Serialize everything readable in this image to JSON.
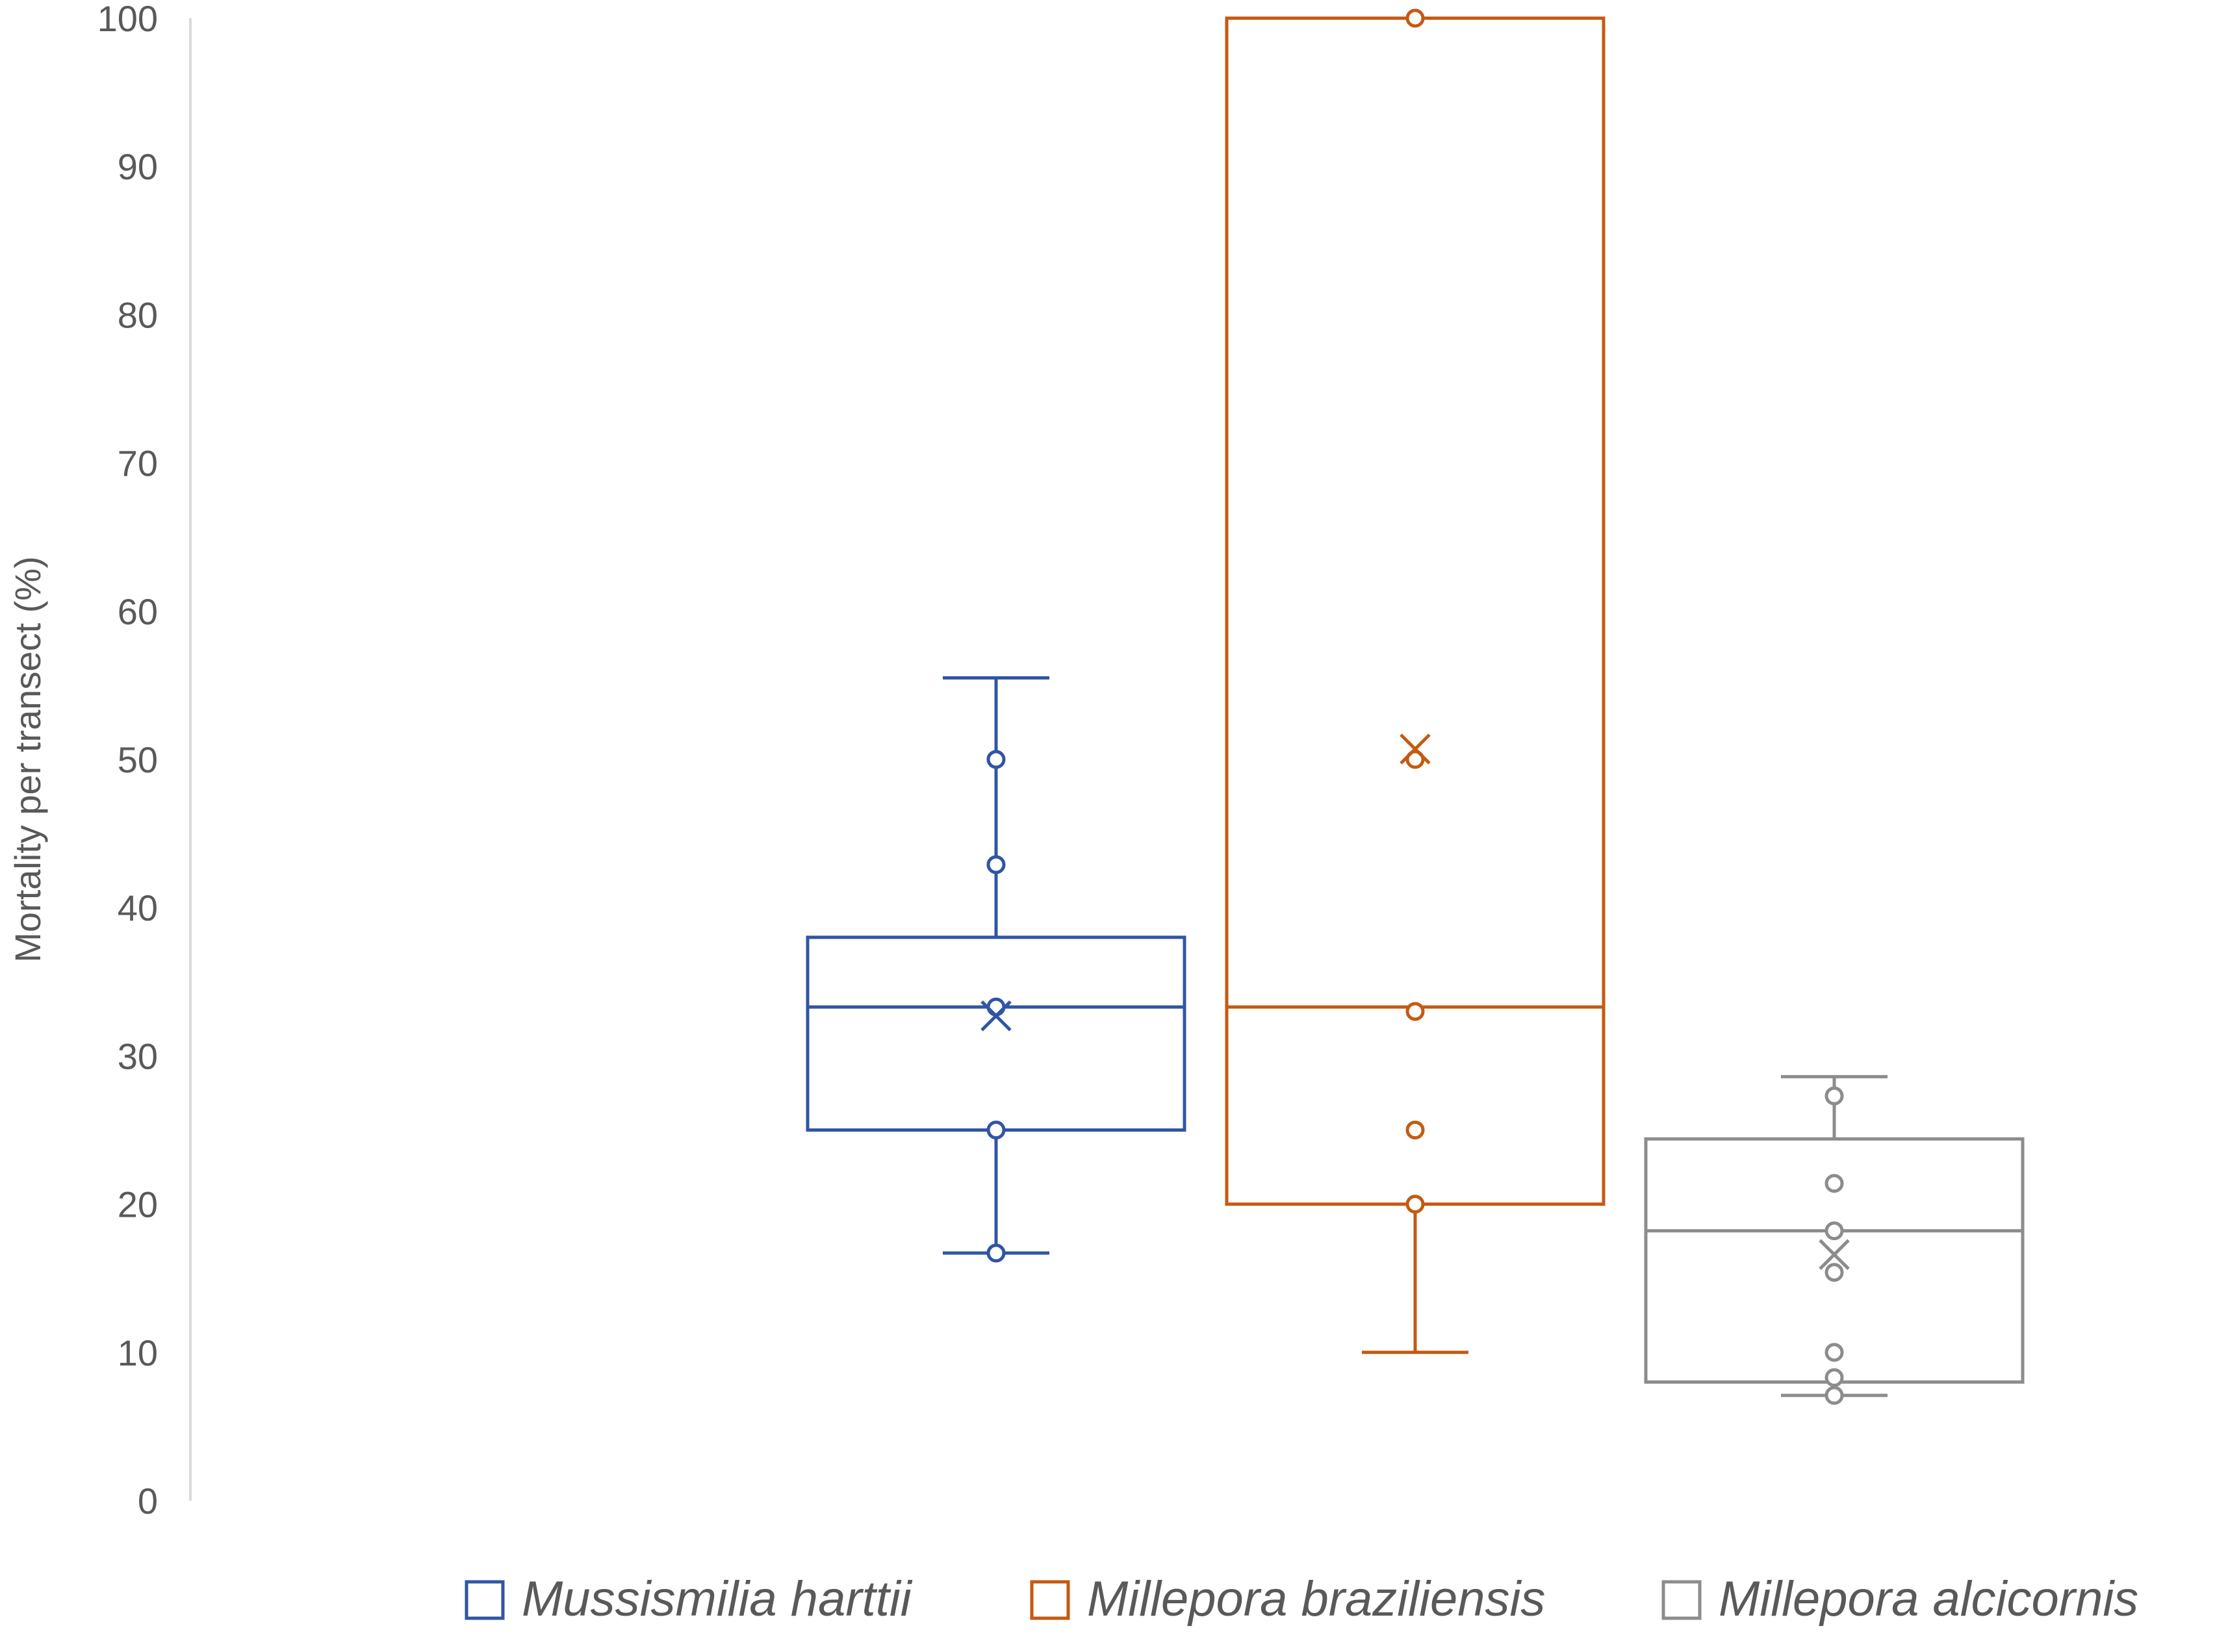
{
  "chart_data": {
    "type": "box",
    "title": "",
    "xlabel": "",
    "ylabel": "Mortality per transect (%)",
    "ylim": [
      0,
      100
    ],
    "yticks": [
      0,
      10,
      20,
      30,
      40,
      50,
      60,
      70,
      80,
      90,
      100
    ],
    "grid": false,
    "legend_position": "bottom",
    "series": [
      {
        "name": "Mussismilia harttii",
        "color": "#2F55A4",
        "whisker_low": 16.7,
        "q1": 25,
        "median": 33.3,
        "q3": 38,
        "whisker_high": 55.5,
        "mean": 32.7,
        "points": [
          16.7,
          25,
          33.3,
          42.9,
          50
        ]
      },
      {
        "name": "Millepora braziliensis",
        "color": "#C55A11",
        "whisker_low": 10,
        "q1": 20,
        "median": 33.3,
        "q3": 100,
        "whisker_high": 100,
        "mean": 50.7,
        "points": [
          20,
          25,
          33,
          50,
          100
        ]
      },
      {
        "name": "Millepora alcicornis",
        "color": "#8C8C8C",
        "whisker_low": 7.1,
        "q1": 8,
        "median": 18.2,
        "q3": 24.4,
        "whisker_high": 28.6,
        "mean": 16.6,
        "points": [
          7.1,
          8.3,
          10,
          15.4,
          18.2,
          21.4,
          27.3
        ]
      }
    ]
  }
}
